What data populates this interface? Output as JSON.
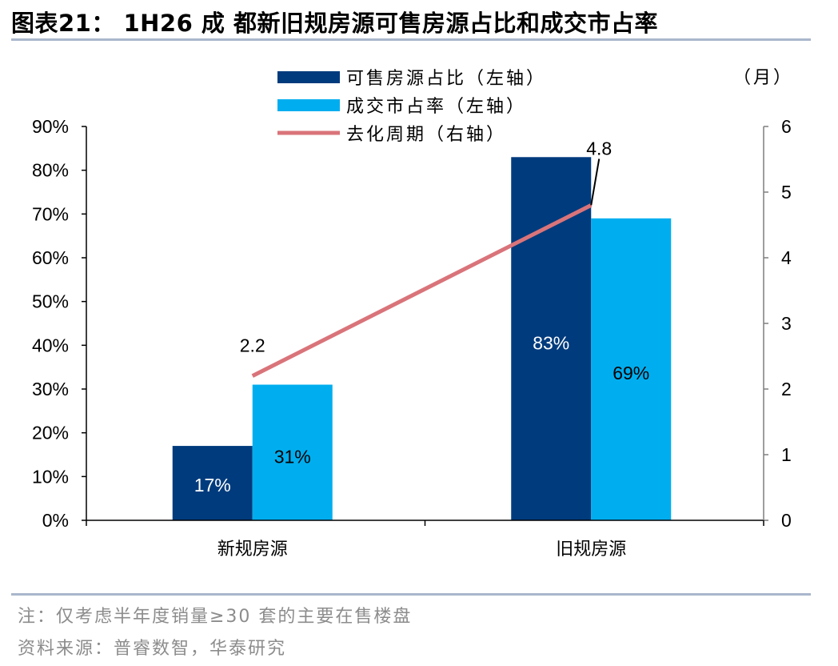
{
  "header": {
    "title": "图表21：  1H26 成 都新旧规房源可售房源占比和成交市占率"
  },
  "footer": {
    "note": "注：仅考虑半年度销量≥30 套的主要在售楼盘",
    "source": "资料来源：普睿数智，华泰研究"
  },
  "colors": {
    "series_dark": "#003b7d",
    "series_light": "#00aeef",
    "line": "#d9747a",
    "rule": "#a9b7cc"
  },
  "chart_data": {
    "type": "bar",
    "categories": [
      "新规房源",
      "旧规房源"
    ],
    "series": [
      {
        "name": "可售房源占比（左轴）",
        "axis": "left",
        "values": [
          17,
          83
        ],
        "labels": [
          "17%",
          "83%"
        ]
      },
      {
        "name": "成交市占率（左轴）",
        "axis": "left",
        "values": [
          31,
          69
        ],
        "labels": [
          "31%",
          "69%"
        ]
      },
      {
        "name": "去化周期（右轴）",
        "axis": "right",
        "type": "line",
        "values": [
          2.2,
          4.8
        ],
        "labels": [
          "2.2",
          "4.8"
        ]
      }
    ],
    "y_left": {
      "ylim": [
        0,
        90
      ],
      "ticks": [
        "0%",
        "10%",
        "20%",
        "30%",
        "40%",
        "50%",
        "60%",
        "70%",
        "80%",
        "90%"
      ]
    },
    "y_right": {
      "ylim": [
        0,
        6
      ],
      "ticks": [
        "0",
        "1",
        "2",
        "3",
        "4",
        "5",
        "6"
      ],
      "unit": "（月）"
    },
    "legend_position": "top-center"
  }
}
